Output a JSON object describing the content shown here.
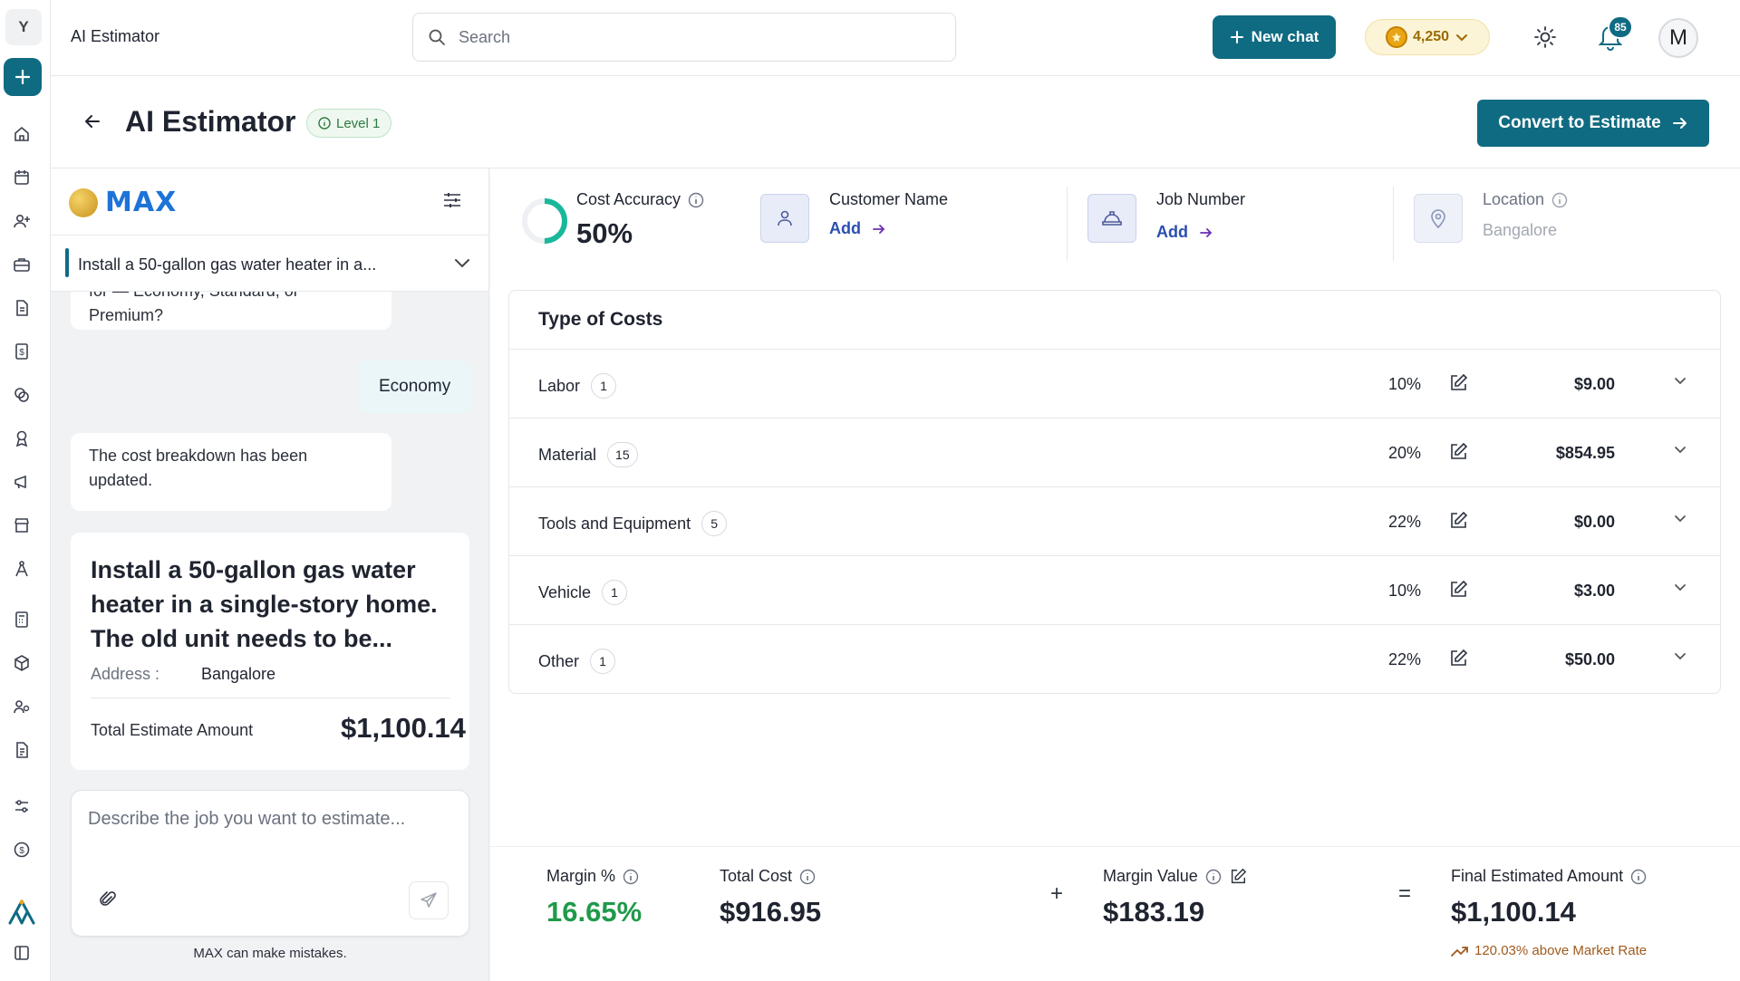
{
  "rail": {
    "logo_letter": "Y"
  },
  "topbar": {
    "app_title": "AI Estimator",
    "search_placeholder": "Search",
    "new_chat_label": "New chat",
    "credits": "4,250",
    "notification_count": "85",
    "avatar_letter": "M"
  },
  "header": {
    "title": "AI Estimator",
    "level": "Level 1",
    "convert_label": "Convert to Estimate"
  },
  "chat": {
    "brand": "MAX",
    "thread_title": "Install a 50-gallon gas water heater in a...",
    "messages": {
      "assistant_1": "for — Economy, Standard, or Premium?",
      "user_1": "Economy",
      "assistant_2": "The cost breakdown has been updated."
    },
    "summary": {
      "title": "Install a 50-gallon gas water heater in a single-story home. The old unit needs to be...",
      "address_label": "Address :",
      "address_value": "Bangalore",
      "total_label": "Total Estimate Amount",
      "total_value": "$1,100.14"
    },
    "composer_placeholder": "Describe the job you want to estimate...",
    "disclaimer": "MAX can make mistakes."
  },
  "overview": {
    "cost_accuracy_label": "Cost Accuracy",
    "cost_accuracy_value": "50%",
    "cost_accuracy_fraction": 0.5,
    "customer_label": "Customer Name",
    "customer_action": "Add",
    "job_label": "Job Number",
    "job_action": "Add",
    "location_label": "Location",
    "location_value": "Bangalore"
  },
  "costs": {
    "title": "Type of Costs",
    "rows": [
      {
        "name": "Labor",
        "count": "1",
        "pct": "10%",
        "amount": "$9.00"
      },
      {
        "name": "Material",
        "count": "15",
        "pct": "20%",
        "amount": "$854.95"
      },
      {
        "name": "Tools and Equipment",
        "count": "5",
        "pct": "22%",
        "amount": "$0.00"
      },
      {
        "name": "Vehicle",
        "count": "1",
        "pct": "10%",
        "amount": "$3.00"
      },
      {
        "name": "Other",
        "count": "1",
        "pct": "22%",
        "amount": "$50.00"
      }
    ]
  },
  "footer": {
    "margin_pct_label": "Margin %",
    "margin_pct_value": "16.65%",
    "total_cost_label": "Total Cost",
    "total_cost_value": "$916.95",
    "plus": "+",
    "margin_value_label": "Margin Value",
    "margin_value_value": "$183.19",
    "equals": "=",
    "final_label": "Final Estimated Amount",
    "final_value": "$1,100.14",
    "market_note": "120.03% above Market Rate"
  },
  "colors": {
    "primary": "#0f6b82",
    "positive": "#1f9a4a",
    "warning_text": "#a05a1c"
  }
}
